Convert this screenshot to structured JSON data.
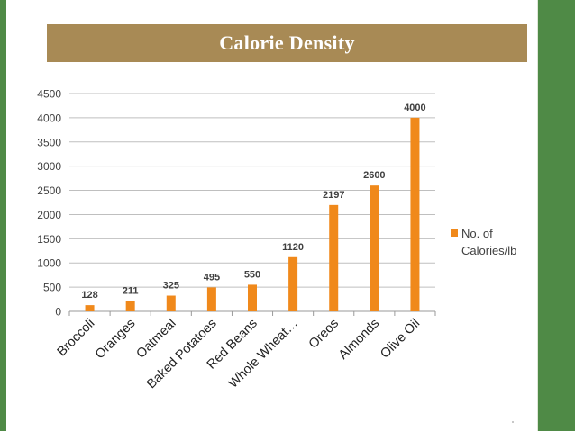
{
  "slide": {
    "title": "Calorie Density",
    "colors": {
      "frame_green": "#4f8a46",
      "title_band": "#a88a55",
      "bar": "#f0891b"
    }
  },
  "chart_data": {
    "type": "bar",
    "title": "Calorie Density",
    "categories": [
      "Broccoli",
      "Oranges",
      "Oatmeal",
      "Baked Potatoes",
      "Red Beans",
      "Whole Wheat…",
      "Oreos",
      "Almonds",
      "Olive Oil"
    ],
    "series": [
      {
        "name": "No. of Calories/lb",
        "values": [
          128,
          211,
          325,
          495,
          550,
          1120,
          2197,
          2600,
          4000
        ]
      }
    ],
    "data_labels": [
      "128",
      "211",
      "325",
      "495",
      "550",
      "1120",
      "2197",
      "2600",
      "4000"
    ],
    "y_ticks": [
      "0",
      "500",
      "1000",
      "1500",
      "2000",
      "2500",
      "3000",
      "3500",
      "4000",
      "4500"
    ],
    "ylim": [
      0,
      4500
    ],
    "xlabel": "",
    "ylabel": "",
    "grid": true,
    "legend": {
      "position": "right",
      "lines": [
        "No. of",
        "Calories/lb"
      ]
    }
  }
}
